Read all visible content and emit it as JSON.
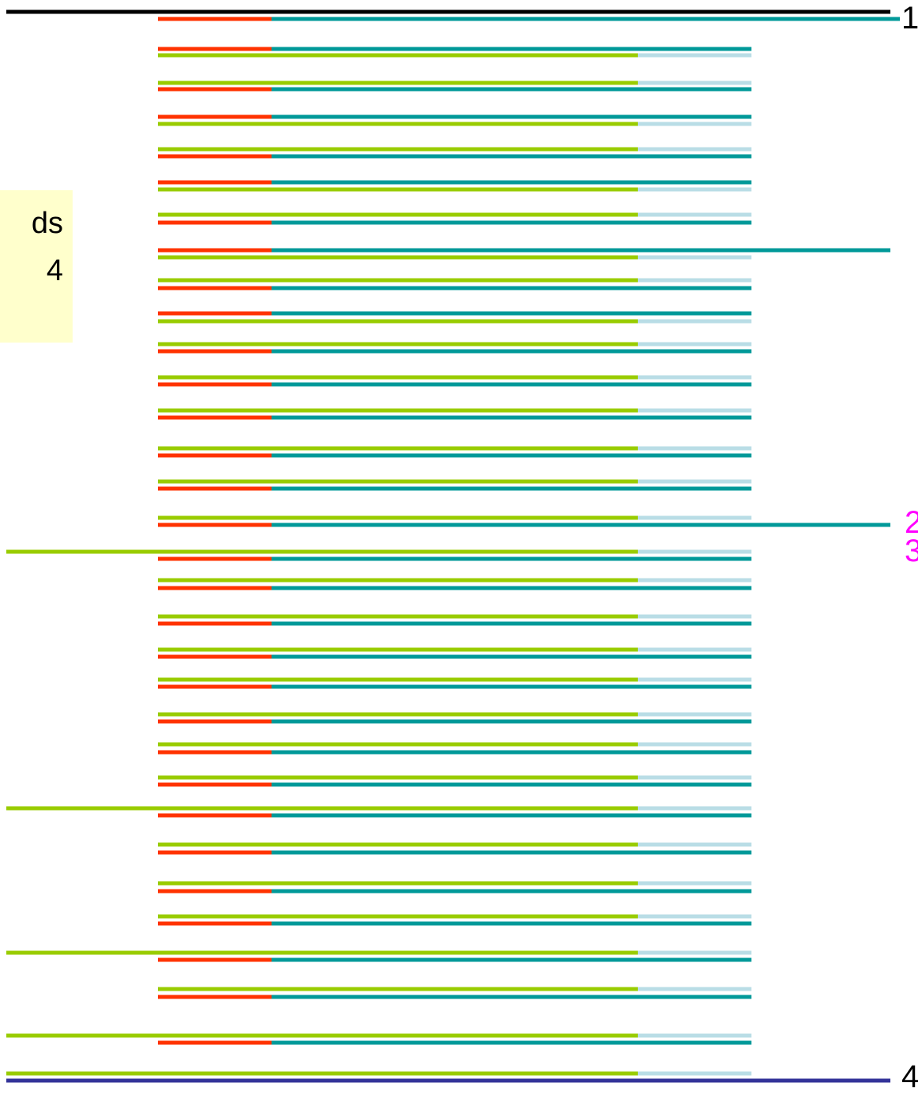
{
  "colors": {
    "orange": "#ff3300",
    "teal": "#009999",
    "lime": "#99cc00",
    "pale_blue": "#b9dde6",
    "black": "#000000",
    "navy": "#333399",
    "magenta": "#ff00ff",
    "note_bg": "#ffffcc"
  },
  "note": {
    "line1": "ds",
    "line2": "4"
  },
  "markers": [
    {
      "id": "marker-1",
      "text": "1",
      "color": "#000000"
    },
    {
      "id": "marker-2",
      "text": "2",
      "color": "#ff00ff"
    },
    {
      "id": "marker-3",
      "text": "3",
      "color": "#ff00ff"
    },
    {
      "id": "marker-4",
      "text": "4",
      "color": "#000000"
    }
  ]
}
